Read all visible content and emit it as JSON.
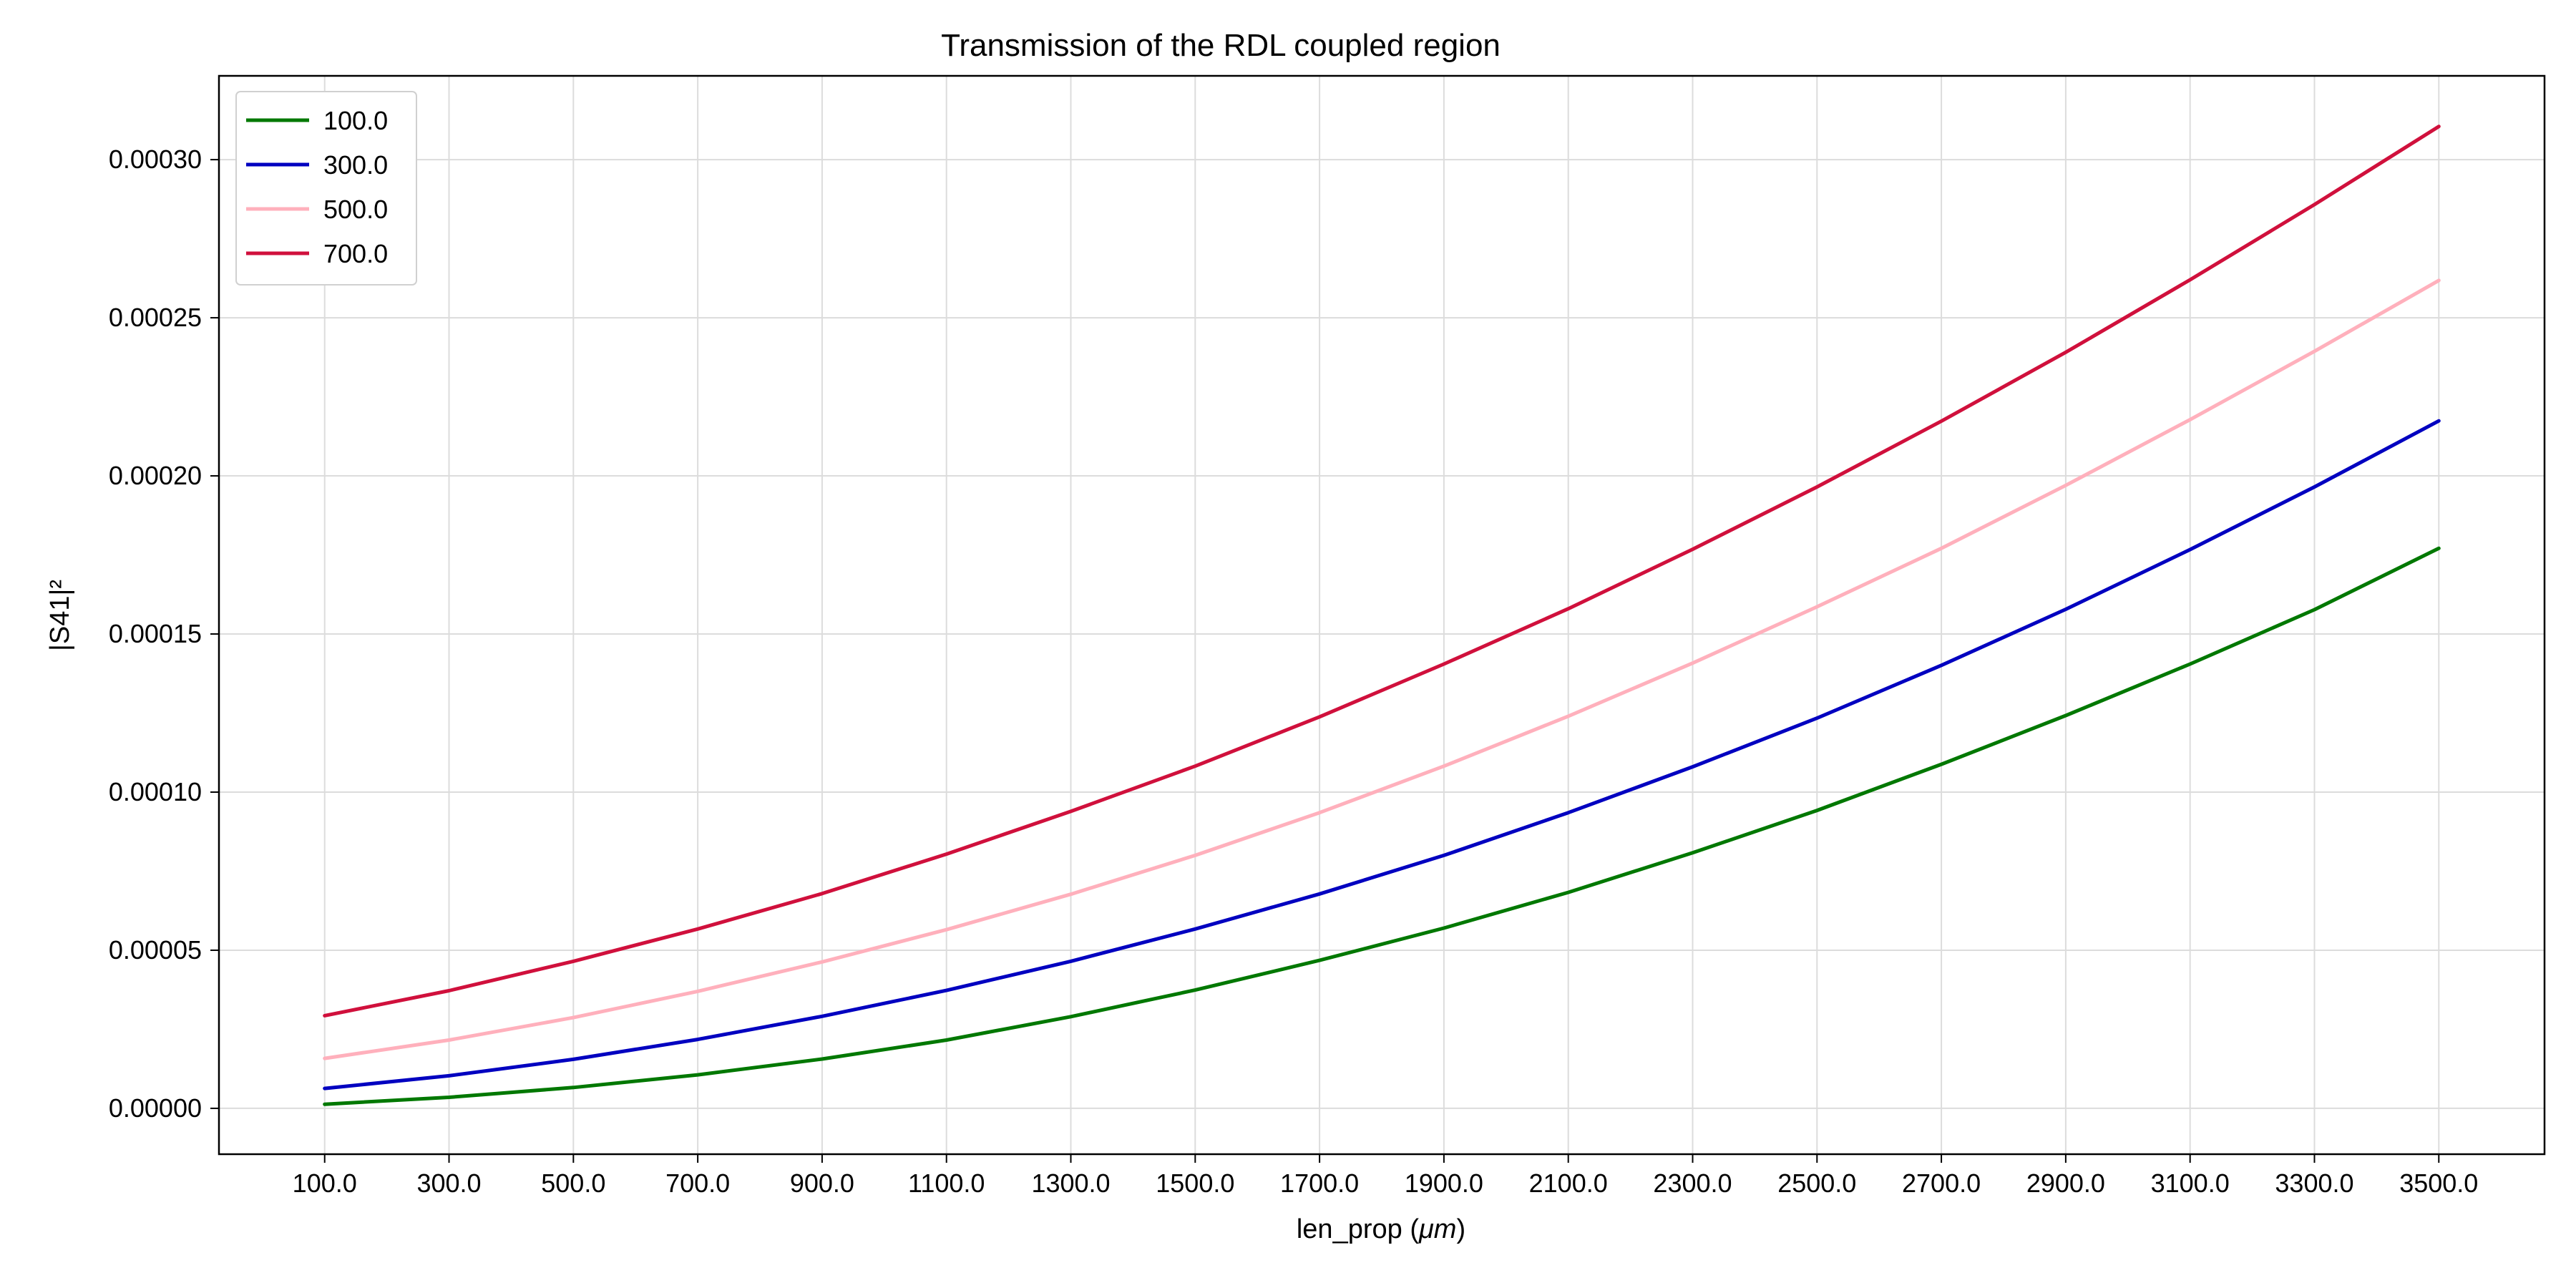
{
  "chart_data": {
    "type": "line",
    "title": "Transmission of the RDL coupled region",
    "xlabel": "len_prop",
    "xlabel_unit": "μm",
    "ylabel": "|S41|²",
    "x_ticks": [
      "100.0",
      "300.0",
      "500.0",
      "700.0",
      "900.0",
      "1100.0",
      "1300.0",
      "1500.0",
      "1700.0",
      "1900.0",
      "2100.0",
      "2300.0",
      "2500.0",
      "2700.0",
      "2900.0",
      "3100.0",
      "3300.0",
      "3500.0"
    ],
    "y_ticks": [
      "0.00000",
      "0.00005",
      "0.00010",
      "0.00015",
      "0.00020",
      "0.00025",
      "0.00030"
    ],
    "xlim": [
      -70,
      3670
    ],
    "ylim": [
      -1.45e-05,
      0.0003265
    ],
    "grid": true,
    "legend_position": "top-left",
    "x": [
      100,
      300,
      500,
      700,
      900,
      1100,
      1300,
      1500,
      1700,
      1900,
      2100,
      2300,
      2500,
      2700,
      2900,
      3100,
      3300,
      3500
    ],
    "series": [
      {
        "name": "100.0",
        "color": "#007800",
        "values": [
          1.3e-06,
          3.5e-06,
          6.6e-06,
          1.06e-05,
          1.56e-05,
          2.16e-05,
          2.9e-05,
          3.74e-05,
          4.68e-05,
          5.7e-05,
          6.83e-05,
          8.08e-05,
          9.42e-05,
          0.0001088,
          0.0001242,
          0.0001405,
          0.0001577,
          0.0001771
        ]
      },
      {
        "name": "300.0",
        "color": "#0000c0",
        "values": [
          6.3e-06,
          1.03e-05,
          1.55e-05,
          2.18e-05,
          2.91e-05,
          3.73e-05,
          4.65e-05,
          5.67e-05,
          6.78e-05,
          8e-05,
          9.35e-05,
          0.000108,
          0.0001234,
          0.0001401,
          0.0001578,
          0.0001767,
          0.0001965,
          0.0002174
        ]
      },
      {
        "name": "500.0",
        "color": "#ffb0bc",
        "values": [
          1.58e-05,
          2.16e-05,
          2.87e-05,
          3.7e-05,
          4.63e-05,
          5.65e-05,
          6.77e-05,
          8e-05,
          9.35e-05,
          0.0001082,
          0.000124,
          0.0001408,
          0.0001586,
          0.0001771,
          0.000197,
          0.0002178,
          0.0002394,
          0.0002618
        ]
      },
      {
        "name": "700.0",
        "color": "#d0103c",
        "values": [
          2.93e-05,
          3.72e-05,
          4.65e-05,
          5.67e-05,
          6.79e-05,
          8.04e-05,
          9.39e-05,
          0.0001082,
          0.0001238,
          0.0001405,
          0.000158,
          0.0001768,
          0.0001965,
          0.0002173,
          0.0002391,
          0.000262,
          0.0002858,
          0.0003105
        ]
      }
    ]
  }
}
